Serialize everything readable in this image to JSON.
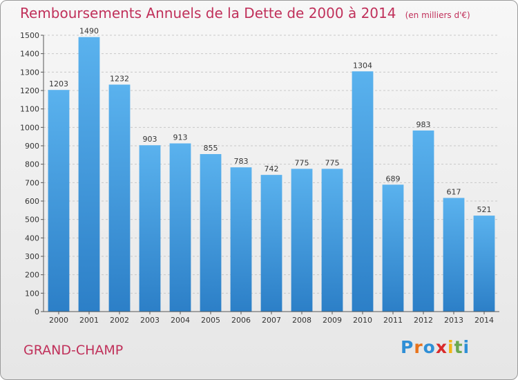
{
  "chart_data": {
    "type": "bar",
    "title": "Remboursements Annuels de la Dette de 2000 à 2014",
    "subtitle": "(en milliers d'€)",
    "categories": [
      "2000",
      "2001",
      "2002",
      "2003",
      "2004",
      "2005",
      "2006",
      "2007",
      "2008",
      "2009",
      "2010",
      "2011",
      "2012",
      "2013",
      "2014"
    ],
    "values": [
      1203,
      1490,
      1232,
      903,
      913,
      855,
      783,
      742,
      775,
      775,
      1304,
      689,
      983,
      617,
      521
    ],
    "ylim": [
      0,
      1500
    ],
    "yticks": [
      0,
      100,
      200,
      300,
      400,
      500,
      600,
      700,
      800,
      900,
      1000,
      1100,
      1200,
      1300,
      1400,
      1500
    ],
    "grid": true,
    "xlabel": "",
    "ylabel": "",
    "bar_color": "#3a8fd9",
    "title_color": "#c0305a"
  },
  "commune": "GRAND-CHAMP",
  "logo": {
    "letters": [
      "P",
      "r",
      "o",
      "x",
      "i",
      "t",
      "i"
    ],
    "colors": [
      "#2f8fd6",
      "#e8731c",
      "#2f8fd6",
      "#d92b2b",
      "#f2b515",
      "#6aa84f",
      "#2f8fd6"
    ]
  }
}
